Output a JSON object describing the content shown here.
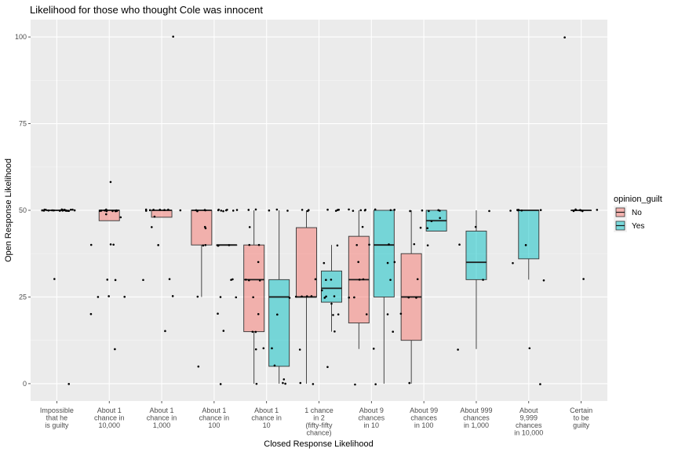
{
  "chart_data": {
    "type": "boxplot",
    "title": "Likelihood for those who thought Cole was innocent",
    "xlabel": "Closed Response Likelihood",
    "ylabel": "Open Response Likelihood",
    "ylim": [
      -5,
      105
    ],
    "yticks": [
      0,
      25,
      50,
      75,
      100
    ],
    "grid": true,
    "legend": {
      "title": "opinion_guilt",
      "position": "right",
      "entries": [
        {
          "name": "No",
          "color": "#F8766D"
        },
        {
          "name": "Yes",
          "color": "#00BFC4"
        }
      ]
    },
    "categories": [
      [
        "Impossible",
        "that he",
        "is guilty"
      ],
      [
        "About 1",
        "chance in",
        "10,000"
      ],
      [
        "About 1",
        "chance in",
        "1,000"
      ],
      [
        "About 1",
        "chance in",
        "100"
      ],
      [
        "About 1",
        "chance in",
        "10"
      ],
      [
        "1 chance",
        "in 2",
        "(fifty-fifty",
        "chance)"
      ],
      [
        "About 9",
        "chances",
        "in 10"
      ],
      [
        "About 99",
        "chances",
        "in 100"
      ],
      [
        "About 999",
        "chances",
        "in 1,000"
      ],
      [
        "About",
        "9,999",
        "chances",
        "in 10,000"
      ],
      [
        "Certain",
        "to be",
        "guilty"
      ]
    ],
    "boxes": [
      {
        "cat": 0,
        "group": "No",
        "min": 50,
        "q1": 50,
        "median": 50,
        "q3": 50,
        "max": 50,
        "outliers": [
          30,
          0
        ]
      },
      {
        "cat": 1,
        "group": "No",
        "min": 47,
        "q1": 47,
        "median": 50,
        "q3": 50,
        "max": 50,
        "outliers": [
          58,
          40,
          40,
          30,
          30,
          25,
          25,
          20,
          10
        ]
      },
      {
        "cat": 2,
        "group": "No",
        "min": 48,
        "q1": 48,
        "median": 50,
        "q3": 50,
        "max": 50,
        "outliers": [
          100,
          40,
          45,
          30,
          30,
          25,
          15
        ]
      },
      {
        "cat": 3,
        "group": "No",
        "min": 25,
        "q1": 40,
        "median": 50,
        "q3": 50,
        "max": 50,
        "outliers": [
          5
        ]
      },
      {
        "cat": 3,
        "group": "Yes",
        "min": 40,
        "q1": 40,
        "median": 40,
        "q3": 40,
        "max": 40,
        "outliers": [
          50,
          50,
          50,
          50,
          30,
          30,
          25,
          25,
          20,
          15,
          0
        ]
      },
      {
        "cat": 4,
        "group": "No",
        "min": 0,
        "q1": 15,
        "median": 30,
        "q3": 40,
        "max": 50,
        "outliers": []
      },
      {
        "cat": 4,
        "group": "Yes",
        "min": 0,
        "q1": 5,
        "median": 25,
        "q3": 30,
        "max": 50,
        "outliers": []
      },
      {
        "cat": 5,
        "group": "No",
        "min": 0,
        "q1": 25,
        "median": 25,
        "q3": 45,
        "max": 50,
        "outliers": []
      },
      {
        "cat": 5,
        "group": "Yes",
        "min": 15,
        "q1": 23.5,
        "median": 27.5,
        "q3": 32.5,
        "max": 40,
        "outliers": [
          50,
          50,
          50
        ]
      },
      {
        "cat": 6,
        "group": "No",
        "min": 10,
        "q1": 17.5,
        "median": 30,
        "q3": 42.5,
        "max": 50,
        "outliers": []
      },
      {
        "cat": 6,
        "group": "Yes",
        "min": 0,
        "q1": 25,
        "median": 40,
        "q3": 50,
        "max": 50,
        "outliers": []
      },
      {
        "cat": 7,
        "group": "No",
        "min": 0,
        "q1": 12.5,
        "median": 25,
        "q3": 37.5,
        "max": 50,
        "outliers": []
      },
      {
        "cat": 7,
        "group": "Yes",
        "min": 44,
        "q1": 44,
        "median": 47,
        "q3": 50,
        "max": 50,
        "outliers": [
          40,
          50
        ]
      },
      {
        "cat": 8,
        "group": "Yes",
        "min": 10,
        "q1": 30,
        "median": 35,
        "q3": 44,
        "max": 50,
        "outliers": []
      },
      {
        "cat": 9,
        "group": "Yes",
        "min": 30,
        "q1": 36,
        "median": 50,
        "q3": 50,
        "max": 50,
        "outliers": [
          10,
          0
        ]
      },
      {
        "cat": 10,
        "group": "No",
        "min": 50,
        "q1": 50,
        "median": 50,
        "q3": 50,
        "max": 50,
        "outliers": [
          100,
          30
        ]
      }
    ],
    "jitter_points": [
      {
        "cat": 0,
        "group": "No",
        "values": [
          50,
          50,
          50,
          50,
          50,
          50,
          50,
          50,
          50,
          50,
          50,
          50,
          50,
          50,
          50,
          50,
          50,
          50,
          50,
          50,
          30,
          0
        ]
      },
      {
        "cat": 1,
        "group": "No",
        "values": [
          58,
          50,
          50,
          50,
          50,
          50,
          50,
          50,
          50,
          50,
          50,
          49,
          48,
          40,
          40,
          40,
          30,
          30,
          25,
          25,
          25,
          20,
          10
        ]
      },
      {
        "cat": 2,
        "group": "No",
        "values": [
          100,
          50,
          50,
          50,
          50,
          50,
          50,
          50,
          50,
          48,
          45,
          40,
          30,
          30,
          25,
          15
        ]
      },
      {
        "cat": 3,
        "group": "No",
        "values": [
          50,
          50,
          50,
          50,
          45,
          45,
          40,
          40,
          25,
          5
        ]
      },
      {
        "cat": 3,
        "group": "Yes",
        "values": [
          50,
          50,
          50,
          50,
          50,
          50,
          50,
          50,
          40,
          40,
          40,
          30,
          30,
          25,
          25,
          20,
          15,
          0
        ]
      },
      {
        "cat": 4,
        "group": "No",
        "values": [
          50,
          50,
          45,
          40,
          40,
          35,
          30,
          30,
          30,
          25,
          20,
          15,
          15,
          10,
          10,
          0
        ]
      },
      {
        "cat": 4,
        "group": "Yes",
        "values": [
          50,
          50,
          50,
          25,
          20,
          10,
          5,
          1,
          0,
          0
        ]
      },
      {
        "cat": 5,
        "group": "No",
        "values": [
          50,
          50,
          50,
          30,
          25,
          25,
          25,
          25,
          10,
          0,
          0
        ]
      },
      {
        "cat": 5,
        "group": "Yes",
        "values": [
          50,
          50,
          50,
          50,
          40,
          35,
          30,
          30,
          27,
          25,
          25,
          25,
          23,
          20,
          20,
          15,
          5
        ]
      },
      {
        "cat": 6,
        "group": "No",
        "values": [
          50,
          50,
          50,
          50,
          50,
          45,
          40,
          40,
          35,
          30,
          30,
          25,
          25,
          20,
          0
        ]
      },
      {
        "cat": 6,
        "group": "Yes",
        "values": [
          50,
          50,
          50,
          40,
          35,
          35,
          30,
          20,
          15,
          10,
          0
        ]
      },
      {
        "cat": 7,
        "group": "No",
        "values": [
          50,
          50,
          45,
          40,
          30,
          25,
          25,
          20,
          0
        ]
      },
      {
        "cat": 7,
        "group": "Yes",
        "values": [
          50,
          50,
          50,
          48,
          47,
          45,
          40
        ]
      },
      {
        "cat": 8,
        "group": "Yes",
        "values": [
          50,
          45,
          40,
          30,
          10
        ]
      },
      {
        "cat": 9,
        "group": "Yes",
        "values": [
          50,
          50,
          50,
          50,
          50,
          50,
          40,
          35,
          30,
          10,
          0
        ]
      },
      {
        "cat": 10,
        "group": "No",
        "values": [
          100,
          50,
          50,
          50,
          50,
          50,
          50,
          50,
          30
        ]
      }
    ]
  }
}
